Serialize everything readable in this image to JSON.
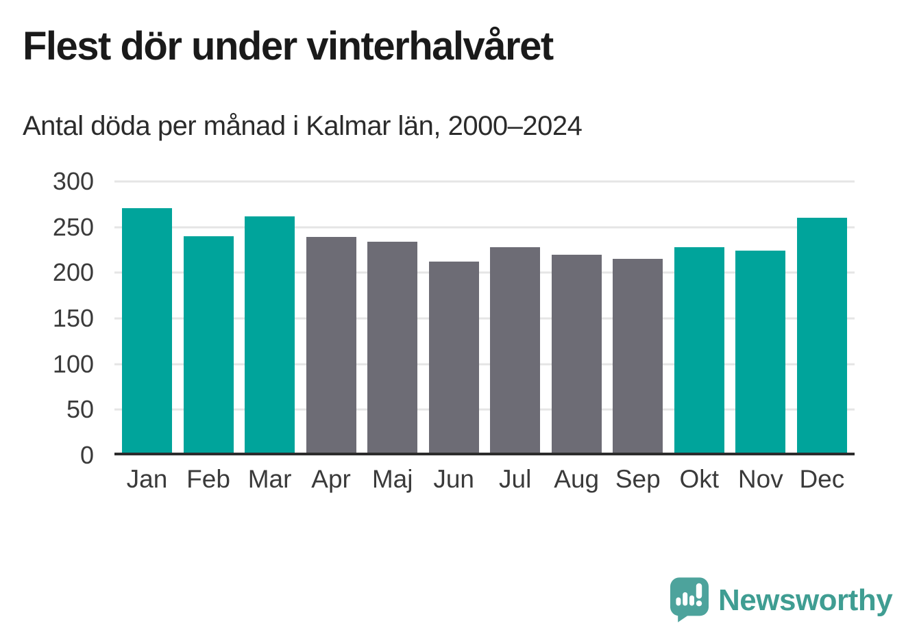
{
  "chart": {
    "title": "Flest dör under vinterhalvåret",
    "subtitle": "Antal döda per månad i Kalmar län, 2000–2024"
  },
  "chart_data": {
    "type": "bar",
    "title": "Flest dör under vinterhalvåret",
    "subtitle": "Antal döda per månad i Kalmar län, 2000–2024",
    "categories": [
      "Jan",
      "Feb",
      "Mar",
      "Apr",
      "Maj",
      "Jun",
      "Jul",
      "Aug",
      "Sep",
      "Okt",
      "Nov",
      "Dec"
    ],
    "values": [
      268,
      237,
      259,
      236,
      231,
      209,
      225,
      217,
      212,
      225,
      221,
      257
    ],
    "bar_colors": [
      "#00a49b",
      "#00a49b",
      "#00a49b",
      "#6d6c75",
      "#6d6c75",
      "#6d6c75",
      "#6d6c75",
      "#6d6c75",
      "#6d6c75",
      "#00a49b",
      "#00a49b",
      "#00a49b"
    ],
    "highlight_color": "#00a49b",
    "muted_color": "#6d6c75",
    "xlabel": "",
    "ylabel": "",
    "ylim": [
      0,
      300
    ],
    "yticks": [
      0,
      50,
      100,
      150,
      200,
      250,
      300
    ],
    "grid": true,
    "legend": false,
    "gridline_color": "#e5e5e5",
    "axis_color": "#2c2c2c"
  },
  "branding": {
    "name": "Newsworthy",
    "logo_icon": "speech-bubble-bar-chart-icon",
    "bubble_color": "#4da39c",
    "text_color": "#3f9d92"
  }
}
